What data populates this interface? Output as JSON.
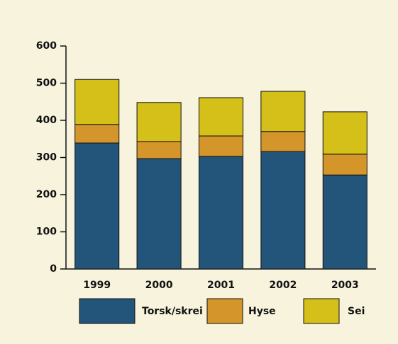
{
  "chart_data": {
    "type": "bar",
    "stacked": true,
    "categories": [
      "1999",
      "2000",
      "2001",
      "2002",
      "2003"
    ],
    "series": [
      {
        "name": "Torsk/skrei",
        "color": "#235479",
        "values": [
          339,
          297,
          303,
          316,
          253
        ]
      },
      {
        "name": "Hyse",
        "color": "#d4952a",
        "values": [
          50,
          46,
          55,
          54,
          56
        ]
      },
      {
        "name": "Sei",
        "color": "#d4c019",
        "values": [
          121,
          105,
          103,
          108,
          114
        ]
      }
    ],
    "ylim": [
      0,
      600
    ],
    "yticks": [
      0,
      100,
      200,
      300,
      400,
      500,
      600
    ],
    "grid": false
  }
}
